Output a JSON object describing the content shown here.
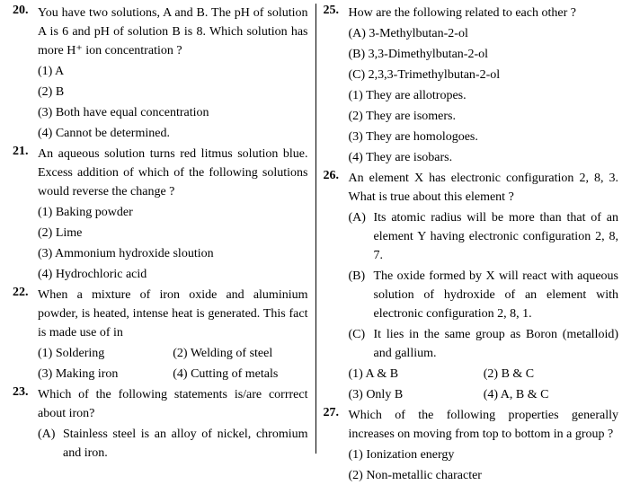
{
  "left": {
    "q20": {
      "num": "20.",
      "text": "You have two solutions, A and B. The pH of solution A is 6 and pH of solution B is 8. Which solution has more H⁺ ion concentration ?",
      "o1": "(1) A",
      "o2": "(2) B",
      "o3": "(3) Both have equal concentration",
      "o4": "(4) Cannot be determined."
    },
    "q21": {
      "num": "21.",
      "text": "An aqueous solution turns red litmus solution blue. Excess addition of which of the following solutions would reverse the change ?",
      "o1": "(1) Baking powder",
      "o2": "(2) Lime",
      "o3": "(3) Ammonium hydroxide sloution",
      "o4": "(4) Hydrochloric acid"
    },
    "q22": {
      "num": "22.",
      "text": "When a mixture of iron oxide and aluminium powder, is heated, intense heat is generated. This fact is made use of in",
      "o1": "(1) Soldering",
      "o2": "(2) Welding of steel",
      "o3": "(3) Making iron",
      "o4": "(4) Cutting of metals"
    },
    "q23": {
      "num": "23.",
      "text": "Which of the following statements is/are corrrect about iron?",
      "aL": "(A)",
      "aT": "Stainless steel is an alloy of nickel, chromium and iron."
    }
  },
  "right": {
    "q25": {
      "num": "25.",
      "text": "How are the following related to each other ?",
      "a": "(A) 3-Methylbutan-2-ol",
      "b": "(B) 3,3-Dimethylbutan-2-ol",
      "c": "(C) 2,3,3-Trimethylbutan-2-ol",
      "o1": "(1) They are allotropes.",
      "o2": "(2) They are isomers.",
      "o3": "(3) They are homologoes.",
      "o4": "(4) They are isobars."
    },
    "q26": {
      "num": "26.",
      "text": "An element X has electronic configuration 2, 8, 3. What is true about this element ?",
      "aL": "(A)",
      "aT": "Its atomic radius will be more than that of an element Y having electronic configuration 2, 8, 7.",
      "bL": "(B)",
      "bT": "The oxide formed by X will react with aqueous solution of hydroxide of an element with electronic configuration 2, 8, 1.",
      "cL": "(C)",
      "cT": "It lies in the same group as Boron (metalloid) and gallium.",
      "o1": "(1) A & B",
      "o2": "(2) B & C",
      "o3": "(3) Only B",
      "o4": "(4) A, B & C"
    },
    "q27": {
      "num": "27.",
      "text": "Which of the following properties generally increases on moving from top to bottom in a group ?",
      "o1": "(1) Ionization energy",
      "o2": "(2) Non-metallic character"
    }
  }
}
